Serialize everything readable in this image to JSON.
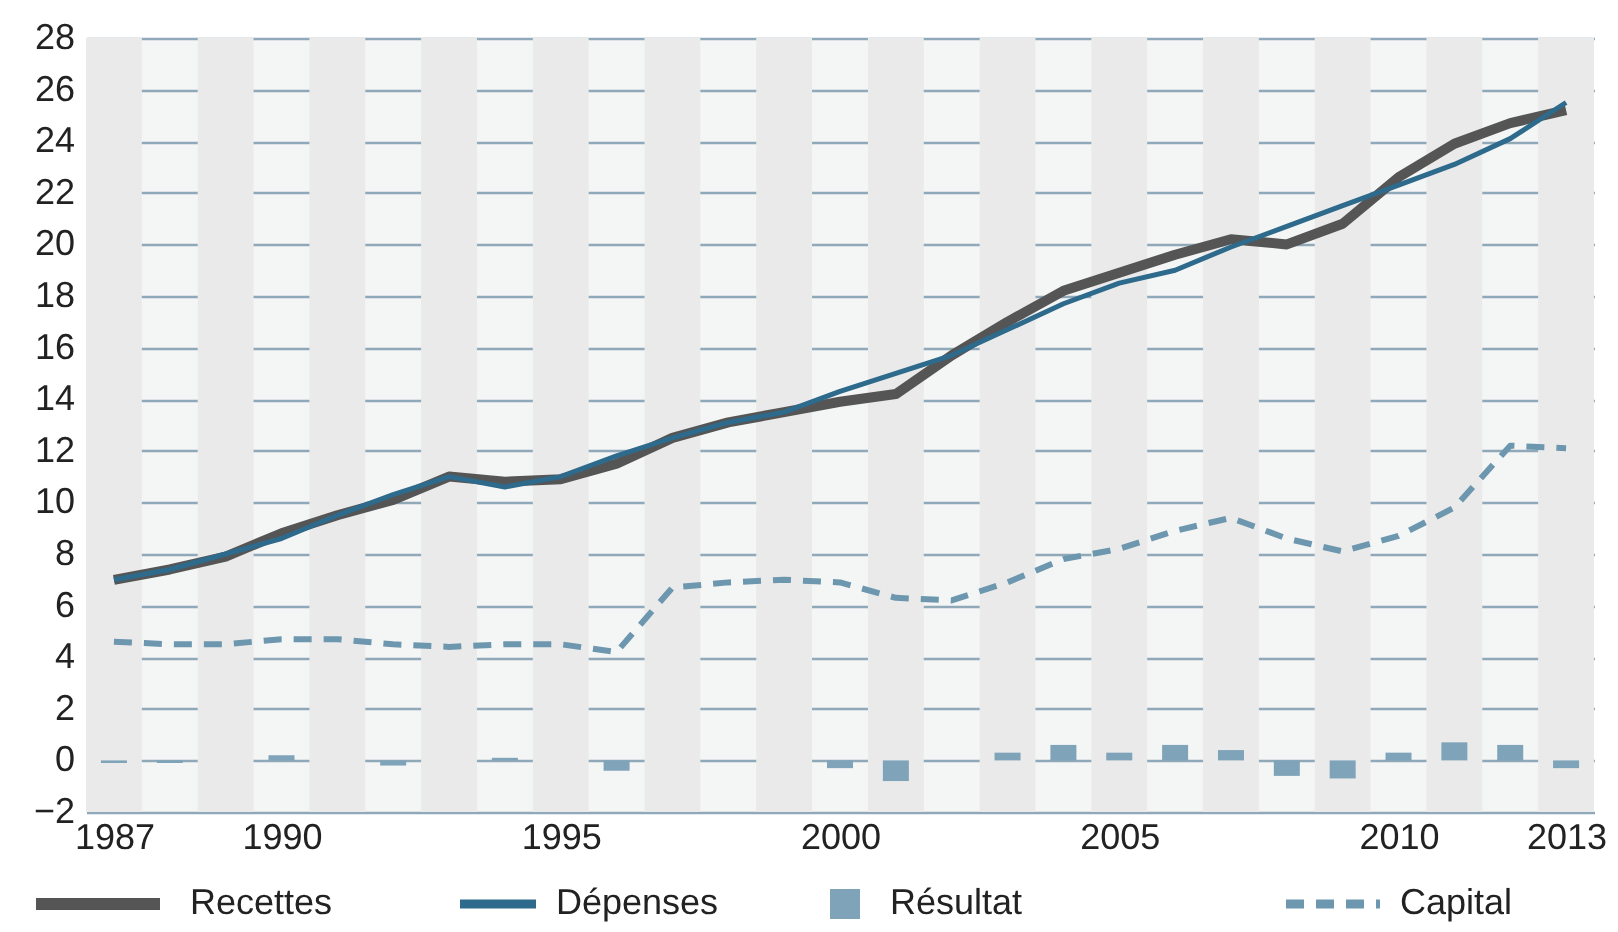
{
  "chart_data": {
    "type": "line",
    "x": [
      1987,
      1988,
      1989,
      1990,
      1991,
      1992,
      1993,
      1994,
      1995,
      1996,
      1997,
      1998,
      1999,
      2000,
      2001,
      2002,
      2003,
      2004,
      2005,
      2006,
      2007,
      2008,
      2009,
      2010,
      2011,
      2012,
      2013
    ],
    "xlim": [
      1986.5,
      2013.5
    ],
    "xticks": [
      1987,
      1990,
      1995,
      2000,
      2005,
      2010,
      2013
    ],
    "ylim": [
      -2,
      28
    ],
    "yticks": [
      -2,
      0,
      2,
      4,
      6,
      8,
      10,
      12,
      14,
      16,
      18,
      20,
      22,
      24,
      26,
      28
    ],
    "grid": "y",
    "legend": "bottom",
    "series": [
      {
        "name": "Recettes",
        "color": "#555555",
        "values": [
          7.0,
          7.4,
          7.9,
          8.8,
          9.5,
          10.1,
          11.0,
          10.8,
          10.9,
          11.5,
          12.5,
          13.1,
          13.5,
          13.9,
          14.2,
          15.7,
          17.0,
          18.2,
          18.9,
          19.6,
          20.2,
          20.0,
          20.8,
          22.6,
          23.9,
          24.7,
          25.2
        ]
      },
      {
        "name": "Dépenses",
        "color": "#2e6a8c",
        "values": [
          7.0,
          7.4,
          8.0,
          8.6,
          9.5,
          10.3,
          11.0,
          10.6,
          11.0,
          11.8,
          12.5,
          13.1,
          13.5,
          14.3,
          15.0,
          15.7,
          16.7,
          17.7,
          18.5,
          19.0,
          19.9,
          20.7,
          21.5,
          22.3,
          23.1,
          24.1,
          25.5
        ]
      },
      {
        "name": "Résultat",
        "type": "bar",
        "color": "#7fa3b8",
        "values": [
          -0.1,
          -0.1,
          0,
          0.2,
          0,
          -0.2,
          0,
          0.1,
          0,
          -0.4,
          0,
          0,
          0,
          -0.3,
          -0.8,
          0,
          0.3,
          0.6,
          0.3,
          0.6,
          0.4,
          -0.6,
          -0.7,
          0.3,
          0.7,
          0.6,
          -0.3
        ]
      },
      {
        "name": "Capital",
        "line_style": "dashed",
        "color": "#6d97ae",
        "values": [
          4.6,
          4.5,
          4.5,
          4.7,
          4.7,
          4.5,
          4.4,
          4.5,
          4.5,
          4.2,
          6.7,
          6.9,
          7.0,
          6.9,
          6.3,
          6.2,
          6.9,
          7.8,
          8.2,
          8.9,
          9.4,
          8.6,
          8.1,
          8.7,
          9.8,
          12.2,
          12.1
        ]
      }
    ],
    "bands": [
      {
        "axis": "x",
        "from": 1986.5,
        "to": 1987.5,
        "color": "#eaeaea"
      },
      {
        "axis": "x",
        "from": 1988.5,
        "to": 1989.5,
        "color": "#eaeaea"
      },
      {
        "axis": "x",
        "from": 1990.5,
        "to": 1991.5,
        "color": "#eaeaea"
      },
      {
        "axis": "x",
        "from": 1992.5,
        "to": 1993.5,
        "color": "#eaeaea"
      },
      {
        "axis": "x",
        "from": 1994.5,
        "to": 1995.5,
        "color": "#eaeaea"
      },
      {
        "axis": "x",
        "from": 1996.5,
        "to": 1997.5,
        "color": "#eaeaea"
      },
      {
        "axis": "x",
        "from": 1998.5,
        "to": 1999.5,
        "color": "#eaeaea"
      },
      {
        "axis": "x",
        "from": 2000.5,
        "to": 2001.5,
        "color": "#eaeaea"
      },
      {
        "axis": "x",
        "from": 2002.5,
        "to": 2003.5,
        "color": "#eaeaea"
      },
      {
        "axis": "x",
        "from": 2004.5,
        "to": 2005.5,
        "color": "#eaeaea"
      },
      {
        "axis": "x",
        "from": 2006.5,
        "to": 2007.5,
        "color": "#eaeaea"
      },
      {
        "axis": "x",
        "from": 2008.5,
        "to": 2009.5,
        "color": "#eaeaea"
      },
      {
        "axis": "x",
        "from": 2010.5,
        "to": 2011.5,
        "color": "#eaeaea"
      },
      {
        "axis": "x",
        "from": 2012.5,
        "to": 2013.5,
        "color": "#eaeaea"
      }
    ]
  }
}
